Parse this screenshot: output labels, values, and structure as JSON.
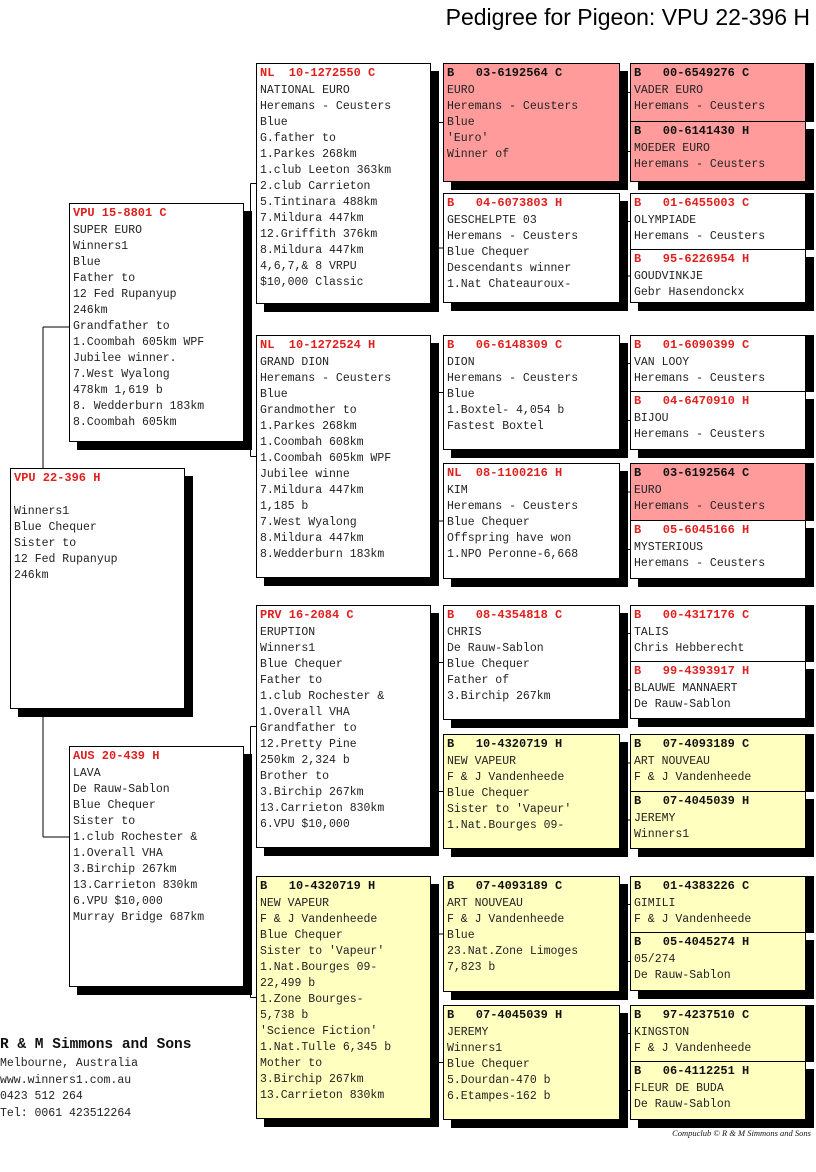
{
  "title": "Pedigree for Pigeon: VPU 22-396 H",
  "colors": {
    "pink": "#ff9b9b",
    "yellow": "#ffffc0",
    "ring_red": "#e0201e"
  },
  "boxes": [
    {
      "role": "subject",
      "color": "white",
      "header": "VPU 22-396 H",
      "lines": [
        "",
        "Winners1",
        "Blue Chequer",
        "Sister to",
        "12 Fed Rupanyup",
        "246km"
      ]
    },
    {
      "role": "sire",
      "color": "white",
      "header": "VPU 15-8801 C",
      "lines": [
        "SUPER EURO",
        "Winners1",
        "Blue",
        "Father to",
        "12 Fed Rupanyup",
        "246km",
        "Grandfather to",
        "1.Coombah 605km WPF",
        "Jubilee winner.",
        "7.West Wyalong",
        "478km 1,619 b",
        "8. Wedderburn 183km",
        "8.Coombah 605km"
      ]
    },
    {
      "role": "dam",
      "color": "white",
      "header": "AUS 20-439 H",
      "lines": [
        "LAVA",
        "De Rauw-Sablon",
        "Blue Chequer",
        "Sister to",
        "1.club Rochester &",
        "1.Overall VHA",
        "3.Birchip 267km",
        "13.Carrieton 830km",
        "6.VPU $10,000",
        "Murray Bridge 687km"
      ]
    },
    {
      "role": "g3",
      "color": "white",
      "header": "NL  10-1272550 C",
      "lines": [
        "NATIONAL EURO",
        "Heremans - Ceusters",
        "Blue",
        "G.father to",
        "1.Parkes 268km",
        "1.club Leeton 363km",
        "2.club Carrieton",
        "5.Tintinara 488km",
        "7.Mildura 447km",
        "12.Griffith 376km",
        "8.Mildura 447km",
        "4,6,7,& 8 VRPU",
        "$10,000 Classic"
      ]
    },
    {
      "role": "g3",
      "color": "white",
      "header": "NL  10-1272524 H",
      "lines": [
        "GRAND DION",
        "Heremans - Ceusters",
        "Blue",
        "Grandmother to",
        "1.Parkes 268km",
        "1.Coombah 608km",
        "1.Coombah 605km WPF",
        "Jubilee winne",
        "7.Mildura 447km",
        "1,185 b",
        "7.West Wyalong",
        "8.Mildura 447km",
        "8.Wedderburn 183km"
      ]
    },
    {
      "role": "g3",
      "color": "white",
      "header": "PRV 16-2084 C",
      "lines": [
        "ERUPTION",
        "Winners1",
        "Blue Chequer",
        "Father to",
        "1.club Rochester &",
        "1.Overall VHA",
        "Grandfather to",
        "12.Pretty Pine",
        "250km 2,324 b",
        "Brother to",
        "3.Birchip 267km",
        "13.Carrieton 830km",
        "6.VPU $10,000"
      ]
    },
    {
      "role": "g3",
      "color": "yellow",
      "header": "B   10-4320719 H",
      "lines": [
        "NEW VAPEUR",
        "F & J Vandenheede",
        "Blue Chequer",
        "Sister to 'Vapeur'",
        "1.Nat.Bourges 09-",
        "22,499 b",
        "1.Zone Bourges-",
        "5,738 b",
        "'Science Fiction'",
        "1.Nat.Tulle 6,345 b",
        "Mother to",
        "3.Birchip 267km",
        "13.Carrieton 830km"
      ]
    },
    {
      "role": "g4",
      "color": "pink",
      "header": "B   03-6192564 C",
      "lines": [
        "EURO",
        "Heremans - Ceusters",
        "Blue",
        "'Euro'",
        "Winner of"
      ]
    },
    {
      "role": "g4",
      "color": "white",
      "header": "B   04-6073803 H",
      "lines": [
        "GESCHELPTE 03",
        "Heremans - Ceusters",
        "Blue Chequer",
        "Descendants winner",
        "1.Nat Chateauroux-"
      ]
    },
    {
      "role": "g4",
      "color": "white",
      "header": "B   06-6148309 C",
      "lines": [
        "DION",
        "Heremans - Ceusters",
        "Blue",
        "1.Boxtel- 4,054 b",
        "Fastest Boxtel"
      ]
    },
    {
      "role": "g4",
      "color": "white",
      "header": "NL  08-1100216 H",
      "lines": [
        "KIM",
        "Heremans - Ceusters",
        "Blue Chequer",
        "Offspring have won",
        "1.NPO Peronne-6,668"
      ]
    },
    {
      "role": "g4",
      "color": "white",
      "header": "B   08-4354818 C",
      "lines": [
        "CHRIS",
        "De Rauw-Sablon",
        "Blue Chequer",
        "Father of",
        "3.Birchip 267km"
      ]
    },
    {
      "role": "g4",
      "color": "yellow",
      "header": "B   10-4320719 H",
      "lines": [
        "NEW VAPEUR",
        "F & J Vandenheede",
        "Blue Chequer",
        "Sister to 'Vapeur'",
        "1.Nat.Bourges 09-"
      ]
    },
    {
      "role": "g4",
      "color": "yellow",
      "header": "B   07-4093189 C",
      "lines": [
        "ART NOUVEAU",
        "F & J Vandenheede",
        "Blue",
        "23.Nat.Zone Limoges",
        "7,823 b"
      ]
    },
    {
      "role": "g4",
      "color": "yellow",
      "header": "B   07-4045039 H",
      "lines": [
        "JEREMY",
        "Winners1",
        "Blue Chequer",
        "5.Dourdan-470 b",
        "6.Etampes-162 b"
      ]
    },
    {
      "role": "g5",
      "color": "pink",
      "header": "B   00-6549276 C",
      "lines": [
        "VADER EURO",
        "Heremans - Ceusters"
      ]
    },
    {
      "role": "g5",
      "color": "pink",
      "header": "B   00-6141430 H",
      "lines": [
        "MOEDER EURO",
        "Heremans - Ceusters"
      ]
    },
    {
      "role": "g5",
      "color": "white",
      "header": "B   01-6455003 C",
      "lines": [
        "OLYMPIADE",
        "Heremans - Ceusters"
      ]
    },
    {
      "role": "g5",
      "color": "white",
      "header": "B   95-6226954 H",
      "lines": [
        "GOUDVINKJE",
        "Gebr Hasendonckx"
      ]
    },
    {
      "role": "g5",
      "color": "white",
      "header": "B   01-6090399 C",
      "lines": [
        "VAN LOOY",
        "Heremans - Ceusters"
      ]
    },
    {
      "role": "g5",
      "color": "white",
      "header": "B   04-6470910 H",
      "lines": [
        "BIJOU",
        "Heremans - Ceusters"
      ]
    },
    {
      "role": "g5",
      "color": "pink",
      "header": "B   03-6192564 C",
      "lines": [
        "EURO",
        "Heremans - Ceusters"
      ]
    },
    {
      "role": "g5",
      "color": "white",
      "header": "B   05-6045166 H",
      "lines": [
        "MYSTERIOUS",
        "Heremans - Ceusters"
      ]
    },
    {
      "role": "g5",
      "color": "white",
      "header": "B   00-4317176 C",
      "lines": [
        "TALIS",
        "Chris Hebberecht"
      ]
    },
    {
      "role": "g5",
      "color": "white",
      "header": "B   99-4393917 H",
      "lines": [
        "BLAUWE MANNAERT",
        "De Rauw-Sablon"
      ]
    },
    {
      "role": "g5",
      "color": "yellow",
      "header": "B   07-4093189 C",
      "lines": [
        "ART NOUVEAU",
        "F & J Vandenheede"
      ]
    },
    {
      "role": "g5",
      "color": "yellow",
      "header": "B   07-4045039 H",
      "lines": [
        "JEREMY",
        "Winners1"
      ]
    },
    {
      "role": "g5",
      "color": "yellow",
      "header": "B   01-4383226 C",
      "lines": [
        "GIMILI",
        "F & J Vandenheede"
      ]
    },
    {
      "role": "g5",
      "color": "yellow",
      "header": "B   05-4045274 H",
      "lines": [
        "05/274",
        "De Rauw-Sablon"
      ]
    },
    {
      "role": "g5",
      "color": "yellow",
      "header": "B   97-4237510 C",
      "lines": [
        "KINGSTON",
        "F & J Vandenheede"
      ]
    },
    {
      "role": "g5",
      "color": "yellow",
      "header": "B   06-4112251 H",
      "lines": [
        "FLEUR DE BUDA",
        "De Rauw-Sablon"
      ]
    }
  ],
  "breeder": {
    "name": "R & M Simmons and Sons",
    "lines": [
      "Melbourne, Australia",
      "www.winners1.com.au",
      "0423 512 264",
      "Tel: 0061 423512264"
    ]
  },
  "copyright": "Compuclub © R & M Simmons and Sons"
}
